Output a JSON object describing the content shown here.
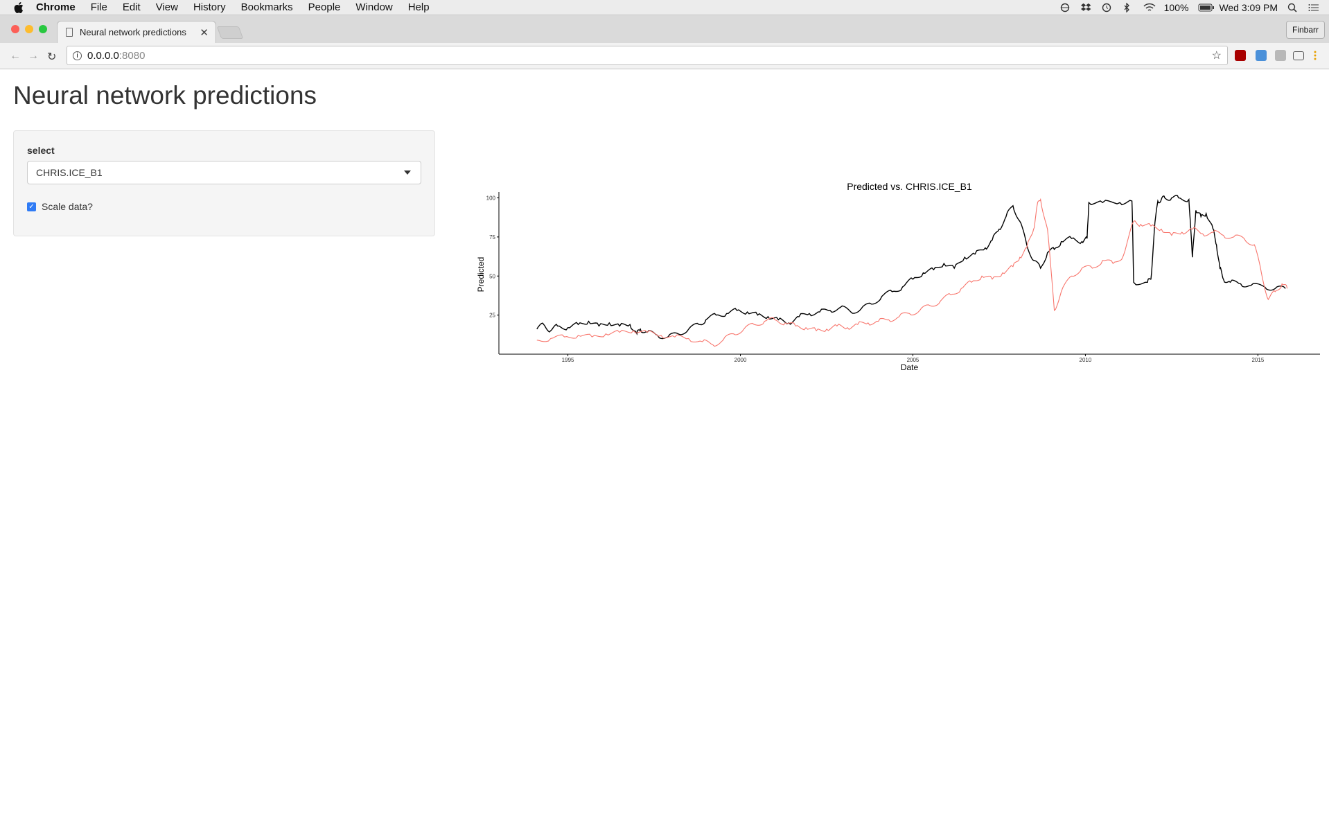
{
  "menubar": {
    "items": [
      "Chrome",
      "File",
      "Edit",
      "View",
      "History",
      "Bookmarks",
      "People",
      "Window",
      "Help"
    ],
    "battery": "100%",
    "clock": "Wed 3:09 PM"
  },
  "browser": {
    "tab_title": "Neural network predictions",
    "profile": "Finbarr",
    "url_host": "0.0.0.0",
    "url_port": ":8080"
  },
  "app": {
    "title": "Neural network predictions",
    "select_label": "select",
    "select_value": "CHRIS.ICE_B1",
    "checkbox_label": "Scale data?",
    "checkbox_checked": true
  },
  "chart_data": {
    "type": "line",
    "title": "Predicted vs.  CHRIS.ICE_B1",
    "xlabel": "Date",
    "ylabel": "Predicted",
    "x_ticks": [
      "1995",
      "2000",
      "2005",
      "2010",
      "2015"
    ],
    "y_ticks": [
      25,
      50,
      75,
      100
    ],
    "xlim": [
      1993.0,
      2016.8
    ],
    "ylim": [
      0,
      102
    ],
    "grid": false,
    "series": [
      {
        "color": "#000000",
        "x": [
          1994.1,
          1994.3,
          1994.5,
          1994.7,
          1995.0,
          1995.3,
          1995.6,
          1995.9,
          1996.2,
          1996.5,
          1996.8,
          1997.0,
          1997.1,
          1997.3,
          1997.6,
          1997.9,
          1998.2,
          1998.5,
          1998.8,
          1999.0,
          1999.3,
          1999.6,
          1999.9,
          2000.2,
          2000.5,
          2000.8,
          2001.1,
          2001.4,
          2001.7,
          2002.0,
          2002.3,
          2002.6,
          2002.9,
          2003.2,
          2003.5,
          2003.8,
          2004.1,
          2004.4,
          2004.7,
          2005.0,
          2005.3,
          2005.6,
          2005.9,
          2006.2,
          2006.5,
          2006.8,
          2007.1,
          2007.3,
          2007.5,
          2007.7,
          2007.9,
          2008.1,
          2008.3,
          2008.5,
          2008.7,
          2008.9,
          2009.1,
          2009.3,
          2009.6,
          2009.9,
          2010.05,
          2010.1,
          2010.5,
          2011.0,
          2011.35,
          2011.4,
          2011.8,
          2011.9,
          2012.0,
          2012.1,
          2012.2,
          2012.3,
          2012.5,
          2012.7,
          2013.0,
          2013.1,
          2013.2,
          2013.35,
          2013.5,
          2013.7,
          2013.8,
          2013.9,
          2014.0,
          2014.2,
          2014.5,
          2014.8,
          2015.2,
          2015.5,
          2015.8
        ],
        "y": [
          16,
          19,
          15,
          18,
          17,
          19,
          21,
          18,
          20,
          18,
          19,
          13,
          16,
          14,
          12,
          11,
          13,
          16,
          19,
          22,
          25,
          26,
          28,
          27,
          25,
          24,
          22,
          20,
          24,
          26,
          27,
          28,
          30,
          27,
          29,
          32,
          37,
          40,
          43,
          48,
          52,
          54,
          58,
          55,
          62,
          64,
          68,
          73,
          80,
          88,
          95,
          85,
          70,
          60,
          55,
          65,
          67,
          72,
          74,
          72,
          74,
          97,
          97,
          97,
          98,
          46,
          46,
          48,
          80,
          98,
          99,
          100,
          100,
          100,
          99,
          62,
          92,
          88,
          90,
          80,
          70,
          55,
          48,
          46,
          45,
          44,
          43,
          42,
          42
        ]
      },
      {
        "color": "#F8766D",
        "x": [
          1994.1,
          1994.5,
          1994.9,
          1995.3,
          1995.7,
          1996.1,
          1996.5,
          1996.9,
          1997.3,
          1997.7,
          1998.1,
          1998.5,
          1998.9,
          1999.2,
          1999.5,
          1999.8,
          2000.1,
          2000.4,
          2000.7,
          2001.0,
          2001.3,
          2001.6,
          2001.9,
          2002.2,
          2002.5,
          2002.8,
          2003.1,
          2003.4,
          2003.7,
          2004.0,
          2004.3,
          2004.6,
          2004.9,
          2005.2,
          2005.5,
          2005.8,
          2006.1,
          2006.4,
          2006.7,
          2007.0,
          2007.3,
          2007.6,
          2007.9,
          2008.1,
          2008.3,
          2008.5,
          2008.6,
          2008.7,
          2008.9,
          2009.1,
          2009.3,
          2009.6,
          2009.9,
          2010.2,
          2010.5,
          2010.8,
          2011.1,
          2011.4,
          2011.6,
          2011.9,
          2012.2,
          2012.5,
          2012.8,
          2013.1,
          2013.4,
          2013.7,
          2014.0,
          2014.3,
          2014.6,
          2014.9,
          2015.1,
          2015.3,
          2015.5,
          2015.7,
          2015.85
        ],
        "y": [
          9,
          10,
          11,
          12,
          11,
          13,
          14,
          15,
          14,
          12,
          11,
          10,
          8,
          6,
          9,
          13,
          16,
          19,
          21,
          22,
          20,
          18,
          17,
          15,
          16,
          18,
          17,
          19,
          20,
          21,
          22,
          24,
          26,
          28,
          31,
          34,
          38,
          42,
          46,
          50,
          48,
          52,
          56,
          62,
          68,
          80,
          95,
          99,
          80,
          28,
          40,
          50,
          55,
          55,
          60,
          58,
          63,
          85,
          83,
          82,
          80,
          76,
          78,
          80,
          77,
          78,
          76,
          75,
          74,
          70,
          52,
          35,
          40,
          45,
          42
        ]
      }
    ]
  }
}
